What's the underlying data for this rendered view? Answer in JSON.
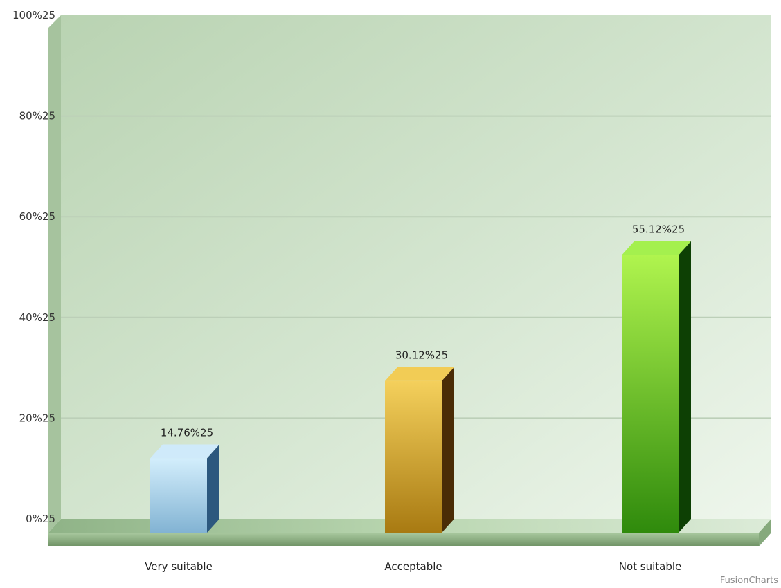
{
  "chart_data": {
    "type": "bar",
    "title": "",
    "xlabel": "",
    "ylabel": "",
    "categories": [
      "Very suitable",
      "Acceptable",
      "Not suitable"
    ],
    "values": [
      14.76,
      30.12,
      55.12
    ],
    "value_labels": [
      "14.76%25",
      "30.12%25",
      "55.12%25"
    ],
    "ylim": [
      0,
      100
    ],
    "y_ticks": [
      0,
      20,
      40,
      60,
      80,
      100
    ],
    "y_tick_labels": [
      "0%25",
      "20%25",
      "40%25",
      "60%25",
      "80%25",
      "100%25"
    ],
    "grid": true,
    "legend": "none",
    "style": "3d-column",
    "colors": {
      "bar_front": [
        "#a9d6ef",
        "#e8b83a",
        "#7fe02a"
      ],
      "bar_top": [
        "#cfeafa",
        "#f2cc55",
        "#a4f04e"
      ],
      "bar_side": [
        "#2c587e",
        "#4a2c06",
        "#0d4004"
      ],
      "plot_bg": "#c8dcc4",
      "gridline": "#bccfb8"
    }
  },
  "watermark": "FusionCharts"
}
